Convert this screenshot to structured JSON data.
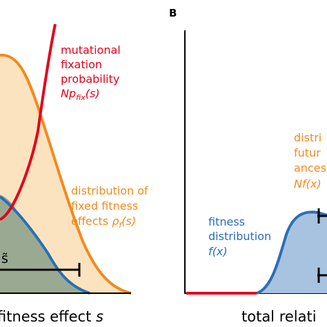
{
  "panel_b_letter": "B",
  "panel_a": {
    "fixation_label": {
      "line1": "mutational",
      "line2": "fixation",
      "line3": "probability",
      "math_prefix": "Np",
      "math_sub": "fix",
      "math_arg": "(s)"
    },
    "fixed_dist_label": {
      "line1": "distribution of",
      "line2": "fixed fitness",
      "line3_text": "effects ",
      "math_rho": "ρ",
      "math_sub": "f",
      "math_arg": "(s)"
    },
    "s_tilde_label": "s̃",
    "xlabel_text": "fitness effect ",
    "xlabel_var": "s"
  },
  "panel_b": {
    "fitness_label": {
      "line1": "fitness",
      "line2": "distribution",
      "line3": "f(x)"
    },
    "future_label": {
      "line1": "distri",
      "line2": "futur",
      "line3": "ances",
      "line4": "Nf(x)"
    },
    "xlabel": "total relati"
  },
  "colors": {
    "red": "#e3001b",
    "orange": "#f28a1f",
    "orange_fill": "#fbe3bf",
    "blue": "#2a6fb5",
    "blue_fill": "#a8c3df",
    "overlap_fill": "#9aaa92",
    "axis": "#000000"
  }
}
